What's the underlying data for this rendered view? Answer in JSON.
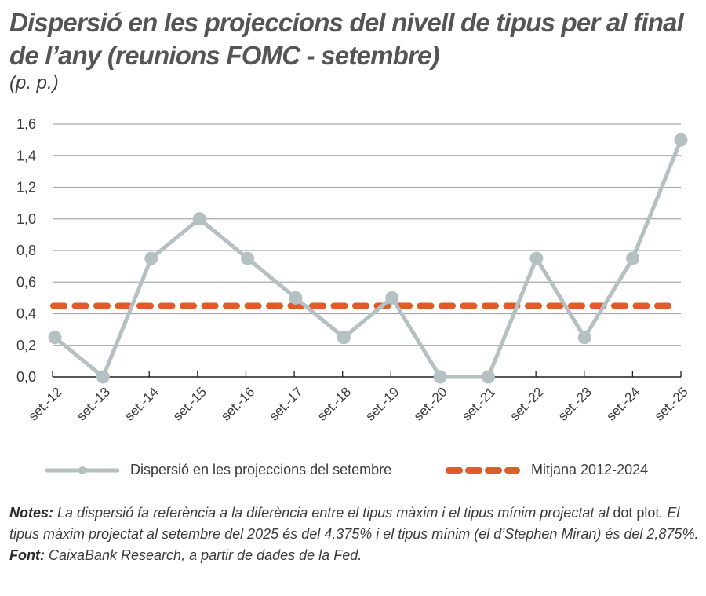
{
  "title": "Dispersió en les projeccions del nivell de tipus per al final de l’any (reunions FOMC - setembre)",
  "unit": "(p. p.)",
  "legend": {
    "series1": "Dispersió en les projeccions del setembre",
    "series2": "Mitjana 2012-2024"
  },
  "notes": {
    "notes_label": "Notes:",
    "notes_text_1": " La dispersió fa referència a la diferència entre el tipus màxim i el tipus mínim projectat al ",
    "notes_text_2": "dot plot",
    "notes_text_3": ". El tipus màxim projectat al setembre del 2025 és del 4,375% i el tipus mínim (el d’Stephen Miran) és del 2,875%.",
    "source_label": "Font:",
    "source_text": " CaixaBank Research, a partir de dades de la Fed."
  },
  "colors": {
    "series": "#b4c0c2",
    "mean": "#e05a2a",
    "grid": "#a8a8a8",
    "axis": "#1e1e1e"
  },
  "chart_data": {
    "type": "line",
    "title": "Dispersió en les projeccions del nivell de tipus per al final de l’any (reunions FOMC - setembre)",
    "ylabel": "(p. p.)",
    "xlabel": "",
    "categories": [
      "set.-12",
      "set.-13",
      "set.-14",
      "set.-15",
      "set.-16",
      "set.-17",
      "set.-18",
      "set.-19",
      "set.-20",
      "set.-21",
      "set.-22",
      "set.-23",
      "set.-24",
      "set.-25"
    ],
    "series": [
      {
        "name": "Dispersió en les projeccions del setembre",
        "style": "solid-with-markers",
        "values": [
          0.25,
          0.0,
          0.75,
          1.0,
          0.75,
          0.5,
          0.25,
          0.5,
          0.0,
          0.0,
          0.75,
          0.25,
          0.75,
          1.5
        ]
      },
      {
        "name": "Mitjana 2012-2024",
        "style": "dashed",
        "values": [
          0.45,
          0.45,
          0.45,
          0.45,
          0.45,
          0.45,
          0.45,
          0.45,
          0.45,
          0.45,
          0.45,
          0.45,
          0.45,
          0.45
        ]
      }
    ],
    "yticks": [
      "0,0",
      "0,2",
      "0,4",
      "0,6",
      "0,8",
      "1,0",
      "1,2",
      "1,4",
      "1,6"
    ],
    "ylim": [
      0,
      1.6
    ],
    "grid": true,
    "legend_position": "bottom"
  }
}
